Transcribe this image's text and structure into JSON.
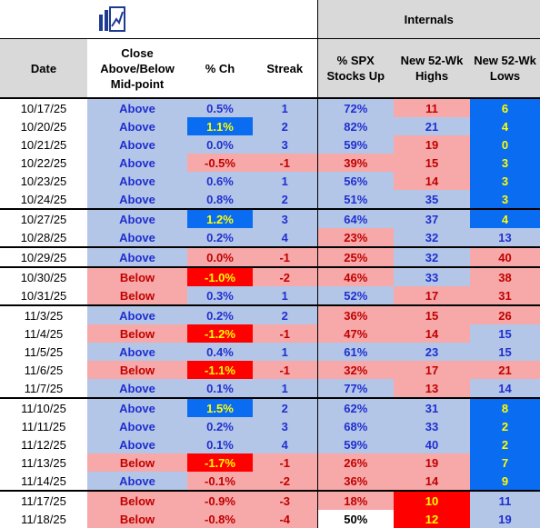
{
  "header": {
    "section_label": "Internals",
    "columns": [
      "Date",
      "Close Above/Below Mid-point",
      "% Ch",
      "Streak",
      "% SPX Stocks Up",
      "New 52-Wk Highs",
      "New 52-Wk Lows"
    ],
    "col_lines": [
      [
        "Date"
      ],
      [
        "Close",
        "Above/Below",
        "Mid-point"
      ],
      [
        "% Ch"
      ],
      [
        "Streak"
      ],
      [
        "% SPX",
        "Stocks Up"
      ],
      [
        "New 52-Wk",
        "Highs"
      ],
      [
        "New 52-Wk",
        "Lows"
      ]
    ],
    "logo_icon": "bar-chart-logo-icon"
  },
  "colors": {
    "light_blue": "#b4c6e7",
    "light_red": "#f7a8a8",
    "dark_blue": "#0a6cf0",
    "dark_red": "#ff0000",
    "header_gray": "#d9d9d9",
    "blue_text": "#1f2fd1",
    "red_text": "#c00000",
    "highlight_text": "#ffff00"
  },
  "rows": [
    {
      "date": "10/17/25",
      "pos": "Above",
      "pch": "0.5%",
      "streak": "1",
      "spx": "72%",
      "highs": "11",
      "lows": "6",
      "s": [
        "bl",
        "bl",
        "bl",
        "bl",
        "rl",
        "bd"
      ]
    },
    {
      "date": "10/20/25",
      "pos": "Above",
      "pch": "1.1%",
      "streak": "2",
      "spx": "82%",
      "highs": "21",
      "lows": "4",
      "s": [
        "bl",
        "bd",
        "bl",
        "bl",
        "bl",
        "bd"
      ]
    },
    {
      "date": "10/21/25",
      "pos": "Above",
      "pch": "0.0%",
      "streak": "3",
      "spx": "59%",
      "highs": "19",
      "lows": "0",
      "s": [
        "bl",
        "bl",
        "bl",
        "bl",
        "rl",
        "bd"
      ]
    },
    {
      "date": "10/22/25",
      "pos": "Above",
      "pch": "-0.5%",
      "streak": "-1",
      "spx": "39%",
      "highs": "15",
      "lows": "3",
      "s": [
        "bl",
        "rl",
        "rl",
        "rl",
        "rl",
        "bd"
      ]
    },
    {
      "date": "10/23/25",
      "pos": "Above",
      "pch": "0.6%",
      "streak": "1",
      "spx": "56%",
      "highs": "14",
      "lows": "3",
      "s": [
        "bl",
        "bl",
        "bl",
        "bl",
        "rl",
        "bd"
      ]
    },
    {
      "date": "10/24/25",
      "pos": "Above",
      "pch": "0.8%",
      "streak": "2",
      "spx": "51%",
      "highs": "35",
      "lows": "3",
      "s": [
        "bl",
        "bl",
        "bl",
        "bl",
        "bl",
        "bd"
      ]
    },
    {
      "date": "10/27/25",
      "pos": "Above",
      "pch": "1.2%",
      "streak": "3",
      "spx": "64%",
      "highs": "37",
      "lows": "4",
      "s": [
        "bl",
        "bd",
        "bl",
        "bl",
        "bl",
        "bd"
      ]
    },
    {
      "date": "10/28/25",
      "pos": "Above",
      "pch": "0.2%",
      "streak": "4",
      "spx": "23%",
      "highs": "32",
      "lows": "13",
      "s": [
        "bl",
        "bl",
        "bl",
        "rl",
        "bl",
        "bl"
      ]
    },
    {
      "date": "10/29/25",
      "pos": "Above",
      "pch": "0.0%",
      "streak": "-1",
      "spx": "25%",
      "highs": "32",
      "lows": "40",
      "s": [
        "bl",
        "rl",
        "rl",
        "rl",
        "bl",
        "rl"
      ]
    },
    {
      "date": "10/30/25",
      "pos": "Below",
      "pch": "-1.0%",
      "streak": "-2",
      "spx": "46%",
      "highs": "33",
      "lows": "38",
      "s": [
        "rl",
        "rd",
        "rl",
        "rl",
        "bl",
        "rl"
      ]
    },
    {
      "date": "10/31/25",
      "pos": "Below",
      "pch": "0.3%",
      "streak": "1",
      "spx": "52%",
      "highs": "17",
      "lows": "31",
      "s": [
        "rl",
        "bl",
        "bl",
        "bl",
        "rl",
        "rl"
      ]
    },
    {
      "date": "11/3/25",
      "pos": "Above",
      "pch": "0.2%",
      "streak": "2",
      "spx": "36%",
      "highs": "15",
      "lows": "26",
      "s": [
        "bl",
        "bl",
        "bl",
        "rl",
        "rl",
        "rl"
      ]
    },
    {
      "date": "11/4/25",
      "pos": "Below",
      "pch": "-1.2%",
      "streak": "-1",
      "spx": "47%",
      "highs": "14",
      "lows": "15",
      "s": [
        "rl",
        "rd",
        "rl",
        "rl",
        "rl",
        "bl"
      ]
    },
    {
      "date": "11/5/25",
      "pos": "Above",
      "pch": "0.4%",
      "streak": "1",
      "spx": "61%",
      "highs": "23",
      "lows": "15",
      "s": [
        "bl",
        "bl",
        "bl",
        "bl",
        "bl",
        "bl"
      ]
    },
    {
      "date": "11/6/25",
      "pos": "Below",
      "pch": "-1.1%",
      "streak": "-1",
      "spx": "32%",
      "highs": "17",
      "lows": "21",
      "s": [
        "rl",
        "rd",
        "rl",
        "rl",
        "rl",
        "rl"
      ]
    },
    {
      "date": "11/7/25",
      "pos": "Above",
      "pch": "0.1%",
      "streak": "1",
      "spx": "77%",
      "highs": "13",
      "lows": "14",
      "s": [
        "bl",
        "bl",
        "bl",
        "bl",
        "rl",
        "bl"
      ]
    },
    {
      "date": "11/10/25",
      "pos": "Above",
      "pch": "1.5%",
      "streak": "2",
      "spx": "62%",
      "highs": "31",
      "lows": "8",
      "s": [
        "bl",
        "bd",
        "bl",
        "bl",
        "bl",
        "bd"
      ]
    },
    {
      "date": "11/11/25",
      "pos": "Above",
      "pch": "0.2%",
      "streak": "3",
      "spx": "68%",
      "highs": "33",
      "lows": "2",
      "s": [
        "bl",
        "bl",
        "bl",
        "bl",
        "bl",
        "bd"
      ]
    },
    {
      "date": "11/12/25",
      "pos": "Above",
      "pch": "0.1%",
      "streak": "4",
      "spx": "59%",
      "highs": "40",
      "lows": "2",
      "s": [
        "bl",
        "bl",
        "bl",
        "bl",
        "bl",
        "bd"
      ]
    },
    {
      "date": "11/13/25",
      "pos": "Below",
      "pch": "-1.7%",
      "streak": "-1",
      "spx": "26%",
      "highs": "19",
      "lows": "7",
      "s": [
        "rl",
        "rd",
        "rl",
        "rl",
        "rl",
        "bd"
      ]
    },
    {
      "date": "11/14/25",
      "pos": "Above",
      "pch": "-0.1%",
      "streak": "-2",
      "spx": "36%",
      "highs": "14",
      "lows": "9",
      "s": [
        "bl",
        "rl",
        "rl",
        "rl",
        "rl",
        "bd"
      ]
    },
    {
      "date": "11/17/25",
      "pos": "Below",
      "pch": "-0.9%",
      "streak": "-3",
      "spx": "18%",
      "highs": "10",
      "lows": "11",
      "s": [
        "rl",
        "rl",
        "rl",
        "rl",
        "rd",
        "bl"
      ]
    },
    {
      "date": "11/18/25",
      "pos": "Below",
      "pch": "-0.8%",
      "streak": "-4",
      "spx": "50%",
      "highs": "12",
      "lows": "19",
      "s": [
        "rl",
        "rl",
        "rl",
        "wh",
        "rd",
        "bl"
      ]
    }
  ]
}
